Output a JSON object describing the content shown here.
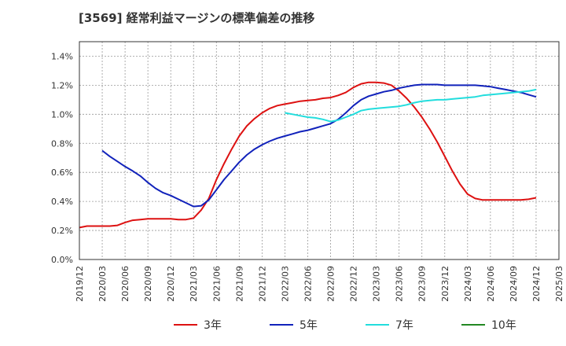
{
  "chart_data": {
    "type": "line",
    "title": "[3569]  経常利益マージンの標準偏差の推移",
    "xlabel": "",
    "ylabel": "",
    "x_ticks": [
      "2019/12",
      "2020/03",
      "2020/06",
      "2020/09",
      "2020/12",
      "2021/03",
      "2021/06",
      "2021/09",
      "2021/12",
      "2022/03",
      "2022/06",
      "2022/09",
      "2022/12",
      "2023/03",
      "2023/06",
      "2023/09",
      "2023/12",
      "2024/03",
      "2024/06",
      "2024/09",
      "2024/12",
      "2025/03"
    ],
    "y_ticks": [
      "0.0%",
      "0.2%",
      "0.4%",
      "0.6%",
      "0.8%",
      "1.0%",
      "1.2%",
      "1.4%"
    ],
    "ylim": [
      0,
      1.5
    ],
    "grid": true,
    "legend_position": "bottom",
    "series": [
      {
        "name": "3年",
        "color": "#dd1111",
        "points": [
          [
            "2019/12",
            0.22
          ],
          [
            "2020/01",
            0.23
          ],
          [
            "2020/02",
            0.23
          ],
          [
            "2020/03",
            0.23
          ],
          [
            "2020/04",
            0.23
          ],
          [
            "2020/05",
            0.235
          ],
          [
            "2020/06",
            0.255
          ],
          [
            "2020/07",
            0.27
          ],
          [
            "2020/08",
            0.275
          ],
          [
            "2020/09",
            0.28
          ],
          [
            "2020/10",
            0.28
          ],
          [
            "2020/11",
            0.28
          ],
          [
            "2020/12",
            0.28
          ],
          [
            "2021/01",
            0.275
          ],
          [
            "2021/02",
            0.275
          ],
          [
            "2021/03",
            0.285
          ],
          [
            "2021/04",
            0.34
          ],
          [
            "2021/05",
            0.42
          ],
          [
            "2021/06",
            0.55
          ],
          [
            "2021/07",
            0.66
          ],
          [
            "2021/08",
            0.76
          ],
          [
            "2021/09",
            0.85
          ],
          [
            "2021/10",
            0.92
          ],
          [
            "2021/11",
            0.97
          ],
          [
            "2021/12",
            1.01
          ],
          [
            "2022/01",
            1.04
          ],
          [
            "2022/02",
            1.06
          ],
          [
            "2022/03",
            1.07
          ],
          [
            "2022/04",
            1.08
          ],
          [
            "2022/05",
            1.09
          ],
          [
            "2022/06",
            1.095
          ],
          [
            "2022/07",
            1.1
          ],
          [
            "2022/08",
            1.11
          ],
          [
            "2022/09",
            1.115
          ],
          [
            "2022/10",
            1.13
          ],
          [
            "2022/11",
            1.15
          ],
          [
            "2022/12",
            1.185
          ],
          [
            "2023/01",
            1.21
          ],
          [
            "2023/02",
            1.22
          ],
          [
            "2023/03",
            1.22
          ],
          [
            "2023/04",
            1.215
          ],
          [
            "2023/05",
            1.2
          ],
          [
            "2023/06",
            1.16
          ],
          [
            "2023/07",
            1.11
          ],
          [
            "2023/08",
            1.05
          ],
          [
            "2023/09",
            0.98
          ],
          [
            "2023/10",
            0.9
          ],
          [
            "2023/11",
            0.81
          ],
          [
            "2023/12",
            0.71
          ],
          [
            "2024/01",
            0.61
          ],
          [
            "2024/02",
            0.52
          ],
          [
            "2024/03",
            0.45
          ],
          [
            "2024/04",
            0.42
          ],
          [
            "2024/05",
            0.41
          ],
          [
            "2024/06",
            0.41
          ],
          [
            "2024/07",
            0.41
          ],
          [
            "2024/08",
            0.41
          ],
          [
            "2024/09",
            0.41
          ],
          [
            "2024/10",
            0.41
          ],
          [
            "2024/11",
            0.415
          ],
          [
            "2024/12",
            0.425
          ]
        ]
      },
      {
        "name": "5年",
        "color": "#1122bb",
        "points": [
          [
            "2020/03",
            0.75
          ],
          [
            "2020/04",
            0.71
          ],
          [
            "2020/05",
            0.675
          ],
          [
            "2020/06",
            0.64
          ],
          [
            "2020/07",
            0.61
          ],
          [
            "2020/08",
            0.575
          ],
          [
            "2020/09",
            0.53
          ],
          [
            "2020/10",
            0.49
          ],
          [
            "2020/11",
            0.46
          ],
          [
            "2020/12",
            0.44
          ],
          [
            "2021/01",
            0.415
          ],
          [
            "2021/02",
            0.39
          ],
          [
            "2021/03",
            0.365
          ],
          [
            "2021/04",
            0.37
          ],
          [
            "2021/05",
            0.41
          ],
          [
            "2021/06",
            0.48
          ],
          [
            "2021/07",
            0.55
          ],
          [
            "2021/08",
            0.61
          ],
          [
            "2021/09",
            0.67
          ],
          [
            "2021/10",
            0.72
          ],
          [
            "2021/11",
            0.76
          ],
          [
            "2021/12",
            0.79
          ],
          [
            "2022/01",
            0.815
          ],
          [
            "2022/02",
            0.835
          ],
          [
            "2022/03",
            0.85
          ],
          [
            "2022/04",
            0.865
          ],
          [
            "2022/05",
            0.88
          ],
          [
            "2022/06",
            0.89
          ],
          [
            "2022/07",
            0.905
          ],
          [
            "2022/08",
            0.92
          ],
          [
            "2022/09",
            0.935
          ],
          [
            "2022/10",
            0.965
          ],
          [
            "2022/11",
            1.01
          ],
          [
            "2022/12",
            1.06
          ],
          [
            "2023/01",
            1.1
          ],
          [
            "2023/02",
            1.125
          ],
          [
            "2023/03",
            1.14
          ],
          [
            "2023/04",
            1.155
          ],
          [
            "2023/05",
            1.165
          ],
          [
            "2023/06",
            1.18
          ],
          [
            "2023/07",
            1.19
          ],
          [
            "2023/08",
            1.2
          ],
          [
            "2023/09",
            1.205
          ],
          [
            "2023/10",
            1.205
          ],
          [
            "2023/11",
            1.205
          ],
          [
            "2023/12",
            1.2
          ],
          [
            "2024/01",
            1.2
          ],
          [
            "2024/02",
            1.2
          ],
          [
            "2024/03",
            1.2
          ],
          [
            "2024/04",
            1.2
          ],
          [
            "2024/05",
            1.195
          ],
          [
            "2024/06",
            1.19
          ],
          [
            "2024/07",
            1.18
          ],
          [
            "2024/08",
            1.17
          ],
          [
            "2024/09",
            1.16
          ],
          [
            "2024/10",
            1.15
          ],
          [
            "2024/11",
            1.135
          ],
          [
            "2024/12",
            1.12
          ]
        ]
      },
      {
        "name": "7年",
        "color": "#22dddd",
        "points": [
          [
            "2022/03",
            1.01
          ],
          [
            "2022/04",
            1.0
          ],
          [
            "2022/05",
            0.99
          ],
          [
            "2022/06",
            0.98
          ],
          [
            "2022/07",
            0.975
          ],
          [
            "2022/08",
            0.965
          ],
          [
            "2022/09",
            0.95
          ],
          [
            "2022/10",
            0.96
          ],
          [
            "2022/11",
            0.98
          ],
          [
            "2022/12",
            1.0
          ],
          [
            "2023/01",
            1.025
          ],
          [
            "2023/02",
            1.035
          ],
          [
            "2023/03",
            1.04
          ],
          [
            "2023/04",
            1.045
          ],
          [
            "2023/05",
            1.05
          ],
          [
            "2023/06",
            1.055
          ],
          [
            "2023/07",
            1.065
          ],
          [
            "2023/08",
            1.08
          ],
          [
            "2023/09",
            1.09
          ],
          [
            "2023/10",
            1.095
          ],
          [
            "2023/11",
            1.1
          ],
          [
            "2023/12",
            1.1
          ],
          [
            "2024/01",
            1.105
          ],
          [
            "2024/02",
            1.11
          ],
          [
            "2024/03",
            1.115
          ],
          [
            "2024/04",
            1.12
          ],
          [
            "2024/05",
            1.13
          ],
          [
            "2024/06",
            1.135
          ],
          [
            "2024/07",
            1.14
          ],
          [
            "2024/08",
            1.145
          ],
          [
            "2024/09",
            1.15
          ],
          [
            "2024/10",
            1.155
          ],
          [
            "2024/11",
            1.16
          ],
          [
            "2024/12",
            1.17
          ]
        ]
      },
      {
        "name": "10年",
        "color": "#228822",
        "points": []
      }
    ]
  }
}
